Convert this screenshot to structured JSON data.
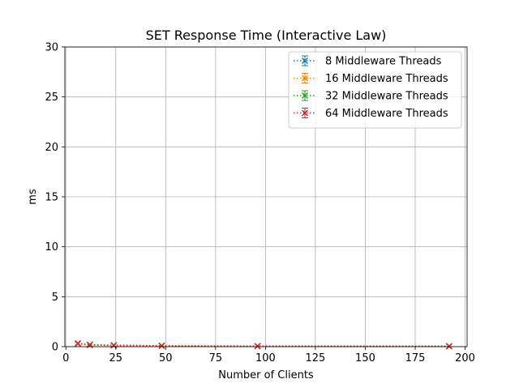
{
  "chart_data": {
    "type": "line",
    "title": "SET Response Time (Interactive Law)",
    "xlabel": "Number of Clients",
    "ylabel": "ms",
    "xlim": [
      -0.5,
      201
    ],
    "ylim": [
      0,
      30
    ],
    "xticks": [
      0,
      25,
      50,
      75,
      100,
      125,
      150,
      175,
      200
    ],
    "yticks": [
      0,
      5,
      10,
      15,
      20,
      25,
      30
    ],
    "grid": true,
    "legend_position": "top-right",
    "x": [
      6,
      12,
      24,
      48,
      96,
      192
    ],
    "series": [
      {
        "name": "8 Middleware Threads",
        "color": "#1f77b4",
        "marker": "x",
        "linestyle": "dotted",
        "values": [
          0.3,
          0.17,
          0.12,
          0.08,
          0.05,
          0.04
        ]
      },
      {
        "name": "16 Middleware Threads",
        "color": "#ff7f0e",
        "marker": "x",
        "linestyle": "dotted",
        "values": [
          0.32,
          0.18,
          0.13,
          0.09,
          0.05,
          0.04
        ]
      },
      {
        "name": "32 Middleware Threads",
        "color": "#2ca02c",
        "marker": "x",
        "linestyle": "dotted",
        "values": [
          0.29,
          0.16,
          0.12,
          0.08,
          0.05,
          0.04
        ]
      },
      {
        "name": "64 Middleware Threads",
        "color": "#d62728",
        "marker": "x",
        "linestyle": "dotted",
        "values": [
          0.33,
          0.19,
          0.14,
          0.09,
          0.06,
          0.04
        ]
      }
    ]
  }
}
